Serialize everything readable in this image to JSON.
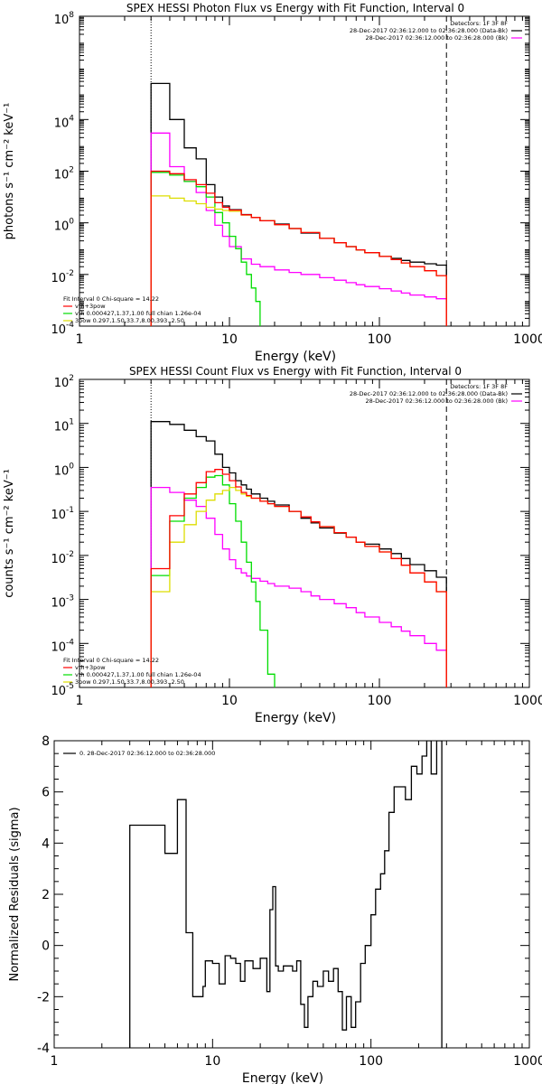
{
  "chart_data": [
    {
      "type": "line",
      "title": "SPEX HESSI Photon Flux vs Energy with Fit Function, Interval 0",
      "xlabel": "Energy (keV)",
      "ylabel": "photons s⁻¹ cm⁻² keV⁻¹",
      "xscale": "log",
      "yscale": "log",
      "xlim": [
        1,
        1000
      ],
      "ylim": [
        0.0001,
        100000000
      ],
      "x_ticks": [
        {
          "v": 1,
          "label": "1"
        },
        {
          "v": 10,
          "label": "10"
        },
        {
          "v": 100,
          "label": "100"
        },
        {
          "v": 1000,
          "label": "1000"
        }
      ],
      "y_ticks": [
        {
          "v": 0.0001,
          "base": "10",
          "exp": "-4"
        },
        {
          "v": 0.01,
          "base": "10",
          "exp": "-2"
        },
        {
          "v": 1,
          "base": "10",
          "exp": "0"
        },
        {
          "v": 100,
          "base": "10",
          "exp": "2"
        },
        {
          "v": 10000,
          "base": "10",
          "exp": "4"
        },
        {
          "v": 100000000,
          "base": "10",
          "exp": "8"
        }
      ],
      "vlines": [
        {
          "x": 3,
          "style": "dotted"
        },
        {
          "x": 280,
          "style": "dashed"
        }
      ],
      "legend_topright": {
        "lines": [
          "Detectors: 1F 3F 8F",
          "28-Dec-2017 02:36:12.000 to 02:36:28.000 (Data-Bk)",
          "28-Dec-2017 02:36:12.000 to 02:36:28.000 (Bk)"
        ],
        "colors": [
          "",
          "#000000",
          "#ff00ff"
        ]
      },
      "legend_bottomleft": {
        "lines": [
          "Fit Interval 0   Chi-square = 14.22",
          "vth+3pow",
          "vth 0.000427,1.37,1.00  full chian 1.26e-04",
          "3pow 0.297,1.50,33.7,8.00,393.,2.50"
        ],
        "colors": [
          "",
          "#ff0000",
          "#00dd00",
          "#dddd00"
        ]
      },
      "series": [
        {
          "name": "Data-Bk",
          "color": "#000000",
          "edges": [
            3,
            4,
            5,
            6,
            7,
            8,
            9,
            10,
            12,
            14,
            16,
            20,
            25,
            30,
            40,
            50,
            60,
            70,
            80,
            100,
            120,
            140,
            160,
            200,
            240,
            280
          ],
          "values": [
            250000,
            10000,
            800,
            300,
            30,
            10,
            4.5,
            3.2,
            2.1,
            1.6,
            1.2,
            0.9,
            0.6,
            0.4,
            0.25,
            0.17,
            0.12,
            0.09,
            0.07,
            0.05,
            0.042,
            0.035,
            0.03,
            0.026,
            0.023
          ]
        },
        {
          "name": "Bk",
          "color": "#ff00ff",
          "edges": [
            3,
            4,
            5,
            6,
            7,
            8,
            9,
            10,
            12,
            14,
            16,
            20,
            25,
            30,
            40,
            50,
            60,
            70,
            80,
            100,
            120,
            140,
            160,
            200,
            240,
            280
          ],
          "values": [
            3000,
            150,
            40,
            15,
            3,
            0.8,
            0.3,
            0.12,
            0.04,
            0.025,
            0.02,
            0.015,
            0.012,
            0.01,
            0.0075,
            0.006,
            0.0048,
            0.004,
            0.0034,
            0.0028,
            0.0023,
            0.0019,
            0.0016,
            0.00135,
            0.00115
          ]
        },
        {
          "name": "vth",
          "color": "#00dd00",
          "edges": [
            3,
            4,
            5,
            6,
            7,
            8,
            9,
            10,
            11,
            12,
            13,
            14,
            15,
            16
          ],
          "values": [
            90,
            70,
            40,
            25,
            10,
            2.5,
            1,
            0.3,
            0.1,
            0.03,
            0.01,
            0.003,
            0.0009
          ]
        },
        {
          "name": "3pow",
          "color": "#dddd00",
          "edges": [
            3,
            4,
            5,
            6,
            7,
            8,
            9,
            10,
            12,
            14,
            16,
            20,
            25,
            30,
            40,
            50,
            60,
            70,
            80,
            100,
            120,
            140,
            160,
            200,
            240,
            280
          ],
          "values": [
            11,
            9,
            7,
            5.5,
            4,
            3.4,
            3,
            2.8,
            2,
            1.6,
            1.2,
            0.85,
            0.6,
            0.42,
            0.25,
            0.17,
            0.12,
            0.09,
            0.07,
            0.05,
            0.038,
            0.028,
            0.02,
            0.014,
            0.009
          ]
        },
        {
          "name": "vth+3pow",
          "color": "#ff0000",
          "edges": [
            3,
            4,
            5,
            6,
            7,
            8,
            9,
            10,
            12,
            14,
            16,
            20,
            25,
            30,
            40,
            50,
            60,
            70,
            80,
            100,
            120,
            140,
            160,
            200,
            240,
            280
          ],
          "values": [
            100,
            80,
            47,
            30,
            14,
            6,
            4,
            3.1,
            2.05,
            1.6,
            1.2,
            0.85,
            0.6,
            0.42,
            0.25,
            0.17,
            0.12,
            0.09,
            0.07,
            0.05,
            0.038,
            0.028,
            0.02,
            0.014,
            0.009
          ]
        }
      ]
    },
    {
      "type": "line",
      "title": "SPEX HESSI Count Flux vs Energy with Fit Function, Interval 0",
      "xlabel": "Energy (keV)",
      "ylabel": "counts s⁻¹ cm⁻² keV⁻¹",
      "xscale": "log",
      "yscale": "log",
      "xlim": [
        1,
        1000
      ],
      "ylim": [
        1e-05,
        100
      ],
      "x_ticks": [
        {
          "v": 1,
          "label": "1"
        },
        {
          "v": 10,
          "label": "10"
        },
        {
          "v": 100,
          "label": "100"
        },
        {
          "v": 1000,
          "label": "1000"
        }
      ],
      "y_ticks": [
        {
          "v": 1e-05,
          "base": "10",
          "exp": "-5"
        },
        {
          "v": 0.0001,
          "base": "10",
          "exp": "-4"
        },
        {
          "v": 0.001,
          "base": "10",
          "exp": "-3"
        },
        {
          "v": 0.01,
          "base": "10",
          "exp": "-2"
        },
        {
          "v": 0.1,
          "base": "10",
          "exp": "-1"
        },
        {
          "v": 1,
          "base": "10",
          "exp": "0"
        },
        {
          "v": 10,
          "base": "10",
          "exp": "1"
        },
        {
          "v": 100,
          "base": "10",
          "exp": "2"
        }
      ],
      "vlines": [
        {
          "x": 3,
          "style": "dotted"
        },
        {
          "x": 280,
          "style": "dashed"
        }
      ],
      "legend_topright": {
        "lines": [
          "Detectors: 1F 3F 8F",
          "28-Dec-2017 02:36:12.000 to 02:36:28.000 (Data-Bk)",
          "28-Dec-2017 02:36:12.000 to 02:36:28.000 (Bk)"
        ],
        "colors": [
          "",
          "#000000",
          "#ff00ff"
        ]
      },
      "legend_bottomleft": {
        "lines": [
          "Fit Interval 0   Chi-square = 14.22",
          "vth+3pow",
          "vth 0.000427,1.37,1.00  full chian 1.26e-04",
          "3pow 0.297,1.50,33.7,8.00,393.,2.50"
        ],
        "colors": [
          "",
          "#ff0000",
          "#00dd00",
          "#dddd00"
        ]
      },
      "series": [
        {
          "name": "Data-Bk",
          "color": "#000000",
          "edges": [
            3,
            4,
            5,
            6,
            7,
            8,
            9,
            10,
            11,
            12,
            13,
            14,
            16,
            18,
            20,
            25,
            30,
            35,
            40,
            50,
            60,
            70,
            80,
            100,
            120,
            140,
            160,
            200,
            240,
            280
          ],
          "values": [
            11,
            9.5,
            7,
            5,
            4,
            2,
            1,
            0.75,
            0.5,
            0.4,
            0.32,
            0.25,
            0.2,
            0.17,
            0.14,
            0.1,
            0.07,
            0.055,
            0.042,
            0.032,
            0.026,
            0.02,
            0.018,
            0.014,
            0.011,
            0.0085,
            0.0062,
            0.0045,
            0.0032
          ]
        },
        {
          "name": "Bk",
          "color": "#ff00ff",
          "edges": [
            3,
            4,
            5,
            6,
            7,
            8,
            9,
            10,
            11,
            12,
            13,
            14,
            16,
            18,
            20,
            25,
            30,
            35,
            40,
            50,
            60,
            70,
            80,
            100,
            120,
            140,
            160,
            200,
            240,
            280
          ],
          "values": [
            0.35,
            0.27,
            0.18,
            0.13,
            0.07,
            0.03,
            0.014,
            0.008,
            0.005,
            0.004,
            0.0034,
            0.003,
            0.0026,
            0.0023,
            0.002,
            0.0018,
            0.0015,
            0.0012,
            0.001,
            0.0008,
            0.00065,
            0.0005,
            0.0004,
            0.0003,
            0.00024,
            0.00019,
            0.00015,
            0.0001,
            7e-05
          ]
        },
        {
          "name": "vth",
          "color": "#00dd00",
          "edges": [
            3,
            4,
            5,
            6,
            7,
            8,
            9,
            10,
            11,
            12,
            13,
            14,
            15,
            16,
            18,
            20
          ],
          "values": [
            0.0035,
            0.06,
            0.2,
            0.35,
            0.6,
            0.65,
            0.4,
            0.15,
            0.06,
            0.02,
            0.007,
            0.0025,
            0.0009,
            0.0002,
            2e-05
          ]
        },
        {
          "name": "3pow",
          "color": "#dddd00",
          "edges": [
            3,
            4,
            5,
            6,
            7,
            8,
            9,
            10,
            11,
            12,
            13,
            14,
            16,
            18,
            20,
            25,
            30,
            35,
            40,
            50,
            60,
            70,
            80,
            100,
            120,
            140,
            160,
            200,
            240,
            280
          ],
          "values": [
            0.0015,
            0.02,
            0.05,
            0.1,
            0.18,
            0.25,
            0.3,
            0.35,
            0.3,
            0.25,
            0.22,
            0.2,
            0.17,
            0.15,
            0.13,
            0.1,
            0.075,
            0.058,
            0.045,
            0.033,
            0.026,
            0.02,
            0.016,
            0.012,
            0.0085,
            0.006,
            0.004,
            0.0025,
            0.0015
          ]
        },
        {
          "name": "vth+3pow",
          "color": "#ff0000",
          "edges": [
            3,
            4,
            5,
            6,
            7,
            8,
            9,
            10,
            11,
            12,
            13,
            14,
            16,
            18,
            20,
            25,
            30,
            35,
            40,
            50,
            60,
            70,
            80,
            100,
            120,
            140,
            160,
            200,
            240,
            280
          ],
          "values": [
            0.005,
            0.08,
            0.25,
            0.45,
            0.8,
            0.9,
            0.7,
            0.5,
            0.36,
            0.27,
            0.23,
            0.2,
            0.17,
            0.15,
            0.13,
            0.1,
            0.075,
            0.058,
            0.045,
            0.033,
            0.026,
            0.02,
            0.016,
            0.012,
            0.0085,
            0.006,
            0.004,
            0.0025,
            0.0015
          ]
        }
      ]
    },
    {
      "type": "line",
      "title": "",
      "xlabel": "Energy (keV)",
      "ylabel": "Normalized Residuals (sigma)",
      "xscale": "log",
      "yscale": "linear",
      "xlim": [
        1,
        1000
      ],
      "ylim": [
        -4,
        8
      ],
      "x_ticks": [
        {
          "v": 1,
          "label": "1"
        },
        {
          "v": 10,
          "label": "10"
        },
        {
          "v": 100,
          "label": "100"
        },
        {
          "v": 1000,
          "label": "1000"
        }
      ],
      "y_ticks": [
        {
          "v": -4,
          "label": "-4"
        },
        {
          "v": -2,
          "label": "-2"
        },
        {
          "v": 0,
          "label": "0"
        },
        {
          "v": 2,
          "label": "2"
        },
        {
          "v": 4,
          "label": "4"
        },
        {
          "v": 6,
          "label": "6"
        },
        {
          "v": 8,
          "label": "8"
        }
      ],
      "vlines": [],
      "legend_topleft": {
        "lines": [
          "0. 28-Dec-2017 02:36:12.000 to 02:36:28.000"
        ],
        "colors": [
          "#000000"
        ]
      },
      "series": [
        {
          "name": "0",
          "color": "#000000",
          "edges": [
            3,
            4,
            5,
            6,
            6.8,
            7.5,
            8,
            8.7,
            9,
            10,
            11,
            12,
            13,
            14,
            15,
            16,
            17,
            18,
            19,
            20,
            21,
            22,
            23,
            24,
            25,
            26,
            28,
            30,
            32,
            34,
            36,
            38,
            40,
            43,
            46,
            50,
            54,
            58,
            62,
            66,
            70,
            75,
            80,
            86,
            92,
            100,
            107,
            115,
            122,
            130,
            140,
            150,
            165,
            180,
            195,
            210,
            225,
            240,
            260,
            280
          ],
          "values": [
            4.7,
            4.7,
            3.6,
            5.7,
            0.5,
            -2.0,
            -2.0,
            -1.6,
            -0.6,
            -0.7,
            -1.5,
            -0.4,
            -0.5,
            -0.7,
            -1.4,
            -0.6,
            -0.6,
            -0.9,
            -0.9,
            -0.5,
            -0.5,
            -1.8,
            1.4,
            2.3,
            -0.8,
            -1.0,
            -0.8,
            -0.8,
            -1.0,
            -0.6,
            -2.3,
            -3.2,
            -2.0,
            -1.4,
            -1.6,
            -1.0,
            -1.4,
            -0.9,
            -1.8,
            -3.3,
            -2.0,
            -3.2,
            -2.2,
            -0.7,
            0.0,
            1.2,
            2.2,
            2.8,
            3.7,
            5.2,
            6.2,
            6.2,
            5.7,
            7.0,
            6.7,
            7.4,
            8.0,
            6.7,
            8.0
          ]
        }
      ]
    }
  ]
}
